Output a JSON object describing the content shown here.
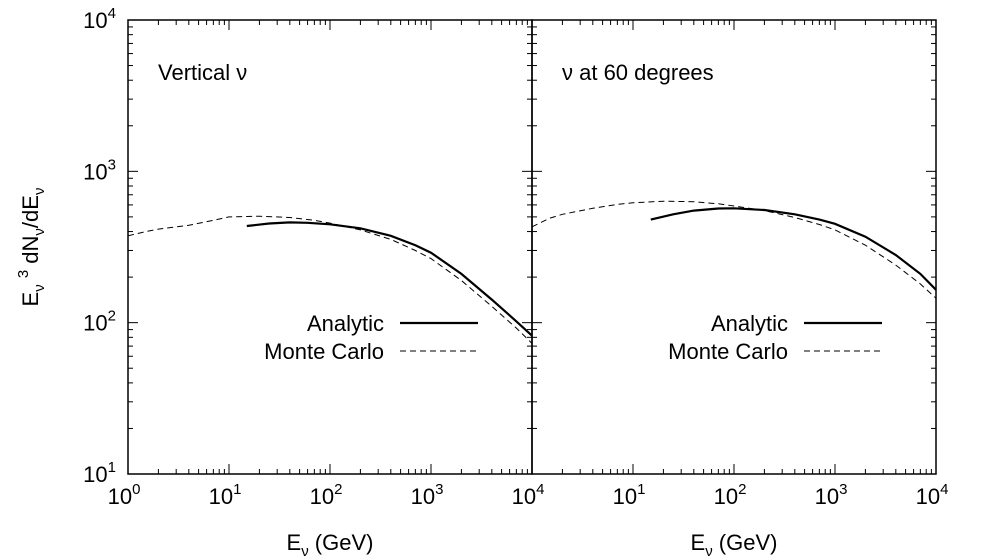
{
  "chart_data": [
    {
      "type": "line",
      "title": "",
      "annotation": "Vertical ν",
      "xlabel": "E",
      "xlabel_sub": "ν",
      "xlabel_tail": " (GeV)",
      "ylabel_parts": [
        "E",
        "ν",
        " ",
        "3",
        " dN",
        "ν",
        "/dE",
        "ν"
      ],
      "x_scale": "log",
      "y_scale": "log",
      "xlim": [
        1,
        10000
      ],
      "ylim": [
        10,
        10000
      ],
      "x_ticks": [
        {
          "base": "10",
          "exp": "0"
        },
        {
          "base": "10",
          "exp": "1"
        },
        {
          "base": "10",
          "exp": "2"
        },
        {
          "base": "10",
          "exp": "3"
        },
        {
          "base": "10",
          "exp": "4"
        }
      ],
      "y_ticks": [
        {
          "base": "10",
          "exp": "1"
        },
        {
          "base": "10",
          "exp": "2"
        },
        {
          "base": "10",
          "exp": "3"
        },
        {
          "base": "10",
          "exp": "4"
        }
      ],
      "legend_position": "right",
      "series": [
        {
          "name": "Analytic",
          "style": "solid",
          "points": [
            [
              15,
              435
            ],
            [
              25,
              452
            ],
            [
              40,
              460
            ],
            [
              60,
              457
            ],
            [
              100,
              447
            ],
            [
              200,
              420
            ],
            [
              400,
              375
            ],
            [
              700,
              325
            ],
            [
              1000,
              290
            ],
            [
              2000,
              210
            ],
            [
              4000,
              142
            ],
            [
              7000,
              102
            ],
            [
              10000,
              82
            ]
          ]
        },
        {
          "name": "Monte Carlo",
          "style": "dashed",
          "points": [
            [
              1,
              375
            ],
            [
              1.5,
              400
            ],
            [
              2,
              415
            ],
            [
              4,
              440
            ],
            [
              7,
              475
            ],
            [
              10,
              500
            ],
            [
              20,
              505
            ],
            [
              40,
              495
            ],
            [
              70,
              475
            ],
            [
              100,
              455
            ],
            [
              200,
              410
            ],
            [
              400,
              355
            ],
            [
              700,
              300
            ],
            [
              1000,
              265
            ],
            [
              2000,
              190
            ],
            [
              4000,
              128
            ],
            [
              7000,
              92
            ],
            [
              10000,
              73
            ]
          ]
        }
      ]
    },
    {
      "type": "line",
      "title": "",
      "annotation": "ν at 60 degrees",
      "xlabel": "E",
      "xlabel_sub": "ν",
      "xlabel_tail": " (GeV)",
      "x_scale": "log",
      "y_scale": "log",
      "xlim": [
        1,
        10000
      ],
      "ylim": [
        10,
        10000
      ],
      "x_ticks": [
        {
          "base": "10",
          "exp": "1"
        },
        {
          "base": "10",
          "exp": "2"
        },
        {
          "base": "10",
          "exp": "3"
        },
        {
          "base": "10",
          "exp": "4"
        }
      ],
      "legend_position": "right",
      "series": [
        {
          "name": "Analytic",
          "style": "solid",
          "points": [
            [
              15,
              480
            ],
            [
              25,
              520
            ],
            [
              40,
              550
            ],
            [
              70,
              568
            ],
            [
              100,
              570
            ],
            [
              200,
              555
            ],
            [
              400,
              520
            ],
            [
              700,
              480
            ],
            [
              1000,
              450
            ],
            [
              2000,
              370
            ],
            [
              4000,
              280
            ],
            [
              7000,
              210
            ],
            [
              10000,
              165
            ]
          ]
        },
        {
          "name": "Monte Carlo",
          "style": "dashed",
          "points": [
            [
              1,
              430
            ],
            [
              1.5,
              490
            ],
            [
              2,
              520
            ],
            [
              4,
              570
            ],
            [
              7,
              605
            ],
            [
              10,
              620
            ],
            [
              20,
              635
            ],
            [
              40,
              630
            ],
            [
              70,
              610
            ],
            [
              100,
              590
            ],
            [
              200,
              550
            ],
            [
              400,
              495
            ],
            [
              700,
              445
            ],
            [
              1000,
              410
            ],
            [
              2000,
              325
            ],
            [
              4000,
              240
            ],
            [
              7000,
              180
            ],
            [
              10000,
              145
            ]
          ]
        }
      ]
    }
  ]
}
